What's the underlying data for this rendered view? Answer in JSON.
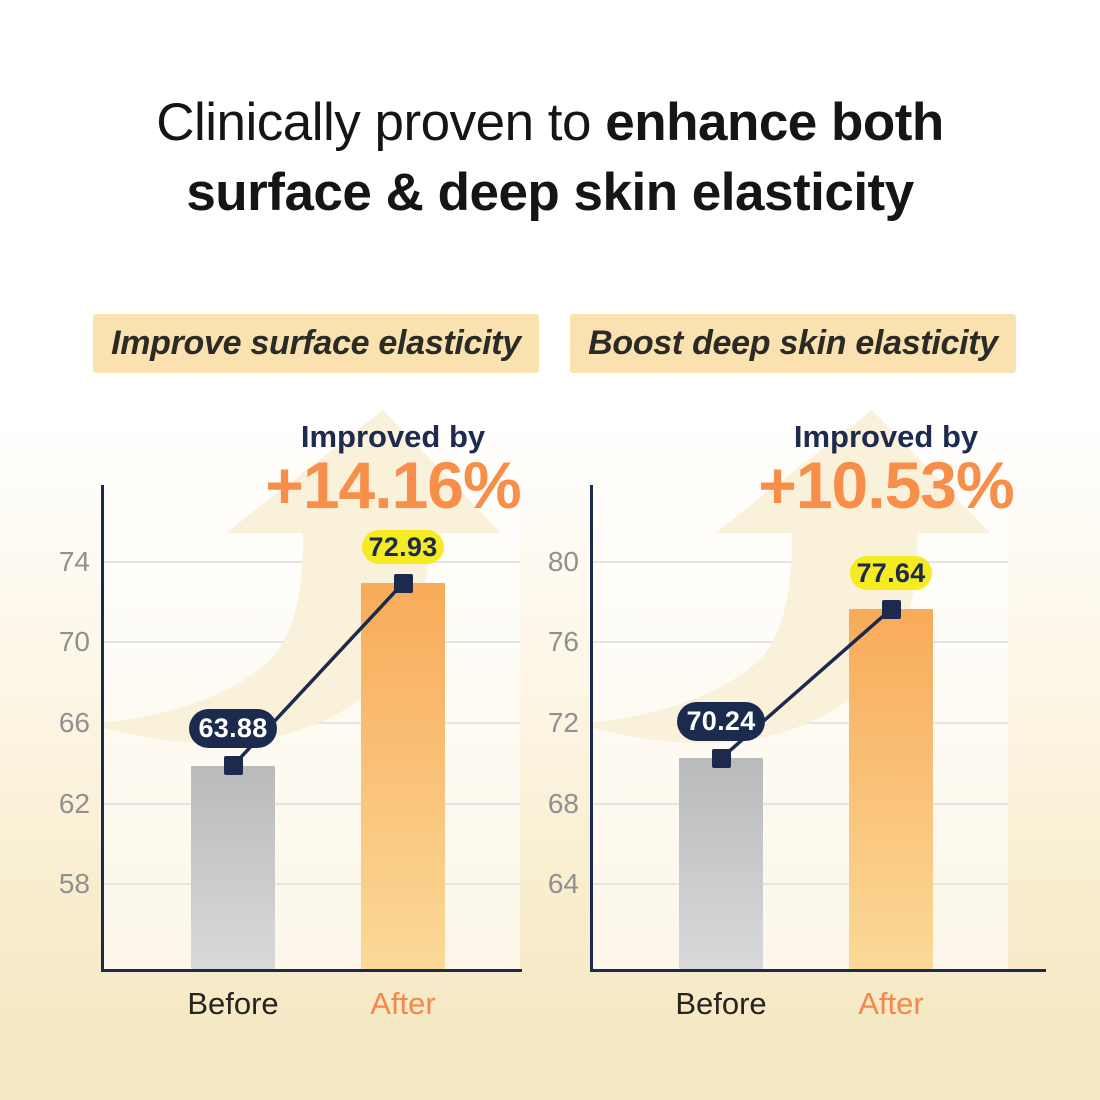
{
  "title": {
    "line1_regular": "Clinically proven to",
    "line1_bold": "enhance both",
    "line2_bold": "surface & deep skin elasticity"
  },
  "chart_data": [
    {
      "type": "bar",
      "badge": "Improve surface elasticity",
      "improved_label": "Improved by",
      "improved_value": "+14.16%",
      "categories": [
        "Before",
        "After"
      ],
      "values": [
        63.88,
        72.93
      ],
      "value_labels": [
        "63.88",
        "72.93"
      ],
      "yticks": [
        58,
        62,
        66,
        70,
        74
      ],
      "ylim": [
        53.8,
        77.8
      ],
      "grid": true,
      "legend": "none"
    },
    {
      "type": "bar",
      "badge": "Boost deep skin elasticity",
      "improved_label": "Improved by",
      "improved_value": "+10.53%",
      "categories": [
        "Before",
        "After"
      ],
      "values": [
        70.24,
        77.64
      ],
      "value_labels": [
        "70.24",
        "77.64"
      ],
      "yticks": [
        64,
        68,
        72,
        76,
        80
      ],
      "ylim": [
        59.8,
        83.8
      ],
      "grid": true,
      "legend": "none"
    }
  ],
  "colors": {
    "navy": "#1c2b4d",
    "orange_text": "#f78e4a",
    "bar_gray_top": "#b9babc",
    "bar_gray_bottom": "#d9d9db",
    "bar_orange_top": "#f8ab59",
    "bar_orange_bottom": "#fbd998",
    "yellow_pill": "#f5eb20",
    "badge_bg": "#f9e2b0",
    "arrow_fill": "#faf1db",
    "gridline": "#e4e3e6",
    "tick_text": "#909093",
    "page_cream": "#f6e8c4"
  }
}
